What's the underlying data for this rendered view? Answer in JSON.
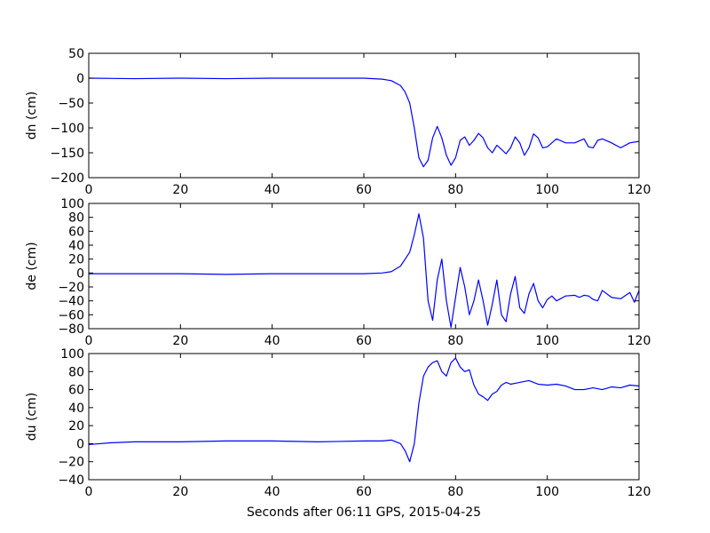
{
  "figure": {
    "xlabel": "Seconds after 06:11 GPS, 2015-04-25"
  },
  "chart_data": [
    {
      "type": "line",
      "ylabel": "dn (cm)",
      "xlim": [
        0,
        120
      ],
      "ylim": [
        -200,
        50
      ],
      "xticks": [
        0,
        20,
        40,
        60,
        80,
        100,
        120
      ],
      "yticks": [
        -200,
        -150,
        -100,
        -50,
        0,
        50
      ],
      "xtick_labels": [
        "0",
        "20",
        "40",
        "60",
        "80",
        "100",
        "120"
      ],
      "ytick_labels": [
        "−200",
        "−150",
        "−100",
        "−50",
        "0",
        "50"
      ],
      "grid": false,
      "line_color": "#0000ff",
      "x": [
        0,
        10,
        20,
        30,
        40,
        50,
        60,
        64,
        66,
        68,
        69,
        70,
        71,
        72,
        73,
        74,
        75,
        76,
        77,
        78,
        79,
        80,
        81,
        82,
        83,
        84,
        85,
        86,
        87,
        88,
        89,
        90,
        91,
        92,
        93,
        94,
        95,
        96,
        97,
        98,
        99,
        100,
        102,
        104,
        106,
        108,
        109,
        110,
        111,
        112,
        114,
        116,
        118,
        120
      ],
      "y": [
        0,
        -1,
        0,
        -1,
        0,
        0,
        0,
        -2,
        -5,
        -15,
        -28,
        -50,
        -100,
        -160,
        -178,
        -165,
        -120,
        -97,
        -120,
        -155,
        -175,
        -160,
        -125,
        -118,
        -135,
        -125,
        -111,
        -120,
        -140,
        -150,
        -135,
        -143,
        -152,
        -140,
        -118,
        -130,
        -155,
        -140,
        -112,
        -120,
        -140,
        -138,
        -122,
        -130,
        -130,
        -122,
        -138,
        -140,
        -125,
        -122,
        -130,
        -140,
        -130,
        -127
      ]
    },
    {
      "type": "line",
      "ylabel": "de (cm)",
      "xlim": [
        0,
        120
      ],
      "ylim": [
        -80,
        100
      ],
      "xticks": [
        0,
        20,
        40,
        60,
        80,
        100,
        120
      ],
      "yticks": [
        -80,
        -60,
        -40,
        -20,
        0,
        20,
        40,
        60,
        80,
        100
      ],
      "xtick_labels": [
        "0",
        "20",
        "40",
        "60",
        "80",
        "100",
        "120"
      ],
      "ytick_labels": [
        "−80",
        "−60",
        "−40",
        "−20",
        "0",
        "20",
        "40",
        "60",
        "80",
        "100"
      ],
      "grid": false,
      "line_color": "#0000ff",
      "x": [
        0,
        10,
        20,
        30,
        40,
        50,
        60,
        64,
        66,
        68,
        69,
        70,
        71,
        72,
        73,
        74,
        75,
        76,
        77,
        78,
        79,
        80,
        81,
        82,
        83,
        84,
        85,
        86,
        87,
        88,
        89,
        90,
        91,
        92,
        93,
        94,
        95,
        96,
        97,
        98,
        99,
        100,
        101,
        102,
        104,
        106,
        107,
        108,
        109,
        110,
        111,
        112,
        114,
        116,
        118,
        119,
        120
      ],
      "y": [
        -1,
        -1,
        -1,
        -2,
        -1,
        -1,
        -1,
        0,
        2,
        10,
        20,
        30,
        55,
        85,
        50,
        -40,
        -68,
        -10,
        20,
        -40,
        -78,
        -35,
        8,
        -20,
        -60,
        -40,
        -10,
        -40,
        -75,
        -45,
        -10,
        -60,
        -70,
        -30,
        -5,
        -50,
        -58,
        -30,
        -15,
        -40,
        -50,
        -38,
        -33,
        -40,
        -33,
        -32,
        -35,
        -32,
        -33,
        -38,
        -40,
        -25,
        -35,
        -37,
        -28,
        -42,
        -25
      ]
    },
    {
      "type": "line",
      "ylabel": "du (cm)",
      "xlim": [
        0,
        120
      ],
      "ylim": [
        -40,
        100
      ],
      "xticks": [
        0,
        20,
        40,
        60,
        80,
        100,
        120
      ],
      "yticks": [
        -40,
        -20,
        0,
        20,
        40,
        60,
        80,
        100
      ],
      "xtick_labels": [
        "0",
        "20",
        "40",
        "60",
        "80",
        "100",
        "120"
      ],
      "ytick_labels": [
        "−40",
        "−20",
        "0",
        "20",
        "40",
        "60",
        "80",
        "100"
      ],
      "grid": false,
      "line_color": "#0000ff",
      "x": [
        0,
        5,
        10,
        20,
        30,
        40,
        50,
        60,
        64,
        66,
        68,
        69,
        70,
        71,
        72,
        73,
        74,
        75,
        76,
        77,
        78,
        79,
        80,
        81,
        82,
        83,
        84,
        85,
        86,
        87,
        88,
        89,
        90,
        91,
        92,
        94,
        96,
        98,
        100,
        102,
        104,
        106,
        108,
        110,
        112,
        114,
        116,
        118,
        120
      ],
      "y": [
        -1,
        1,
        2,
        2,
        3,
        3,
        2,
        3,
        3,
        4,
        0,
        -8,
        -20,
        0,
        45,
        75,
        85,
        90,
        92,
        80,
        75,
        90,
        95,
        85,
        80,
        82,
        65,
        55,
        52,
        48,
        55,
        58,
        65,
        68,
        66,
        68,
        70,
        66,
        65,
        66,
        64,
        60,
        60,
        62,
        60,
        63,
        62,
        65,
        64
      ]
    }
  ]
}
